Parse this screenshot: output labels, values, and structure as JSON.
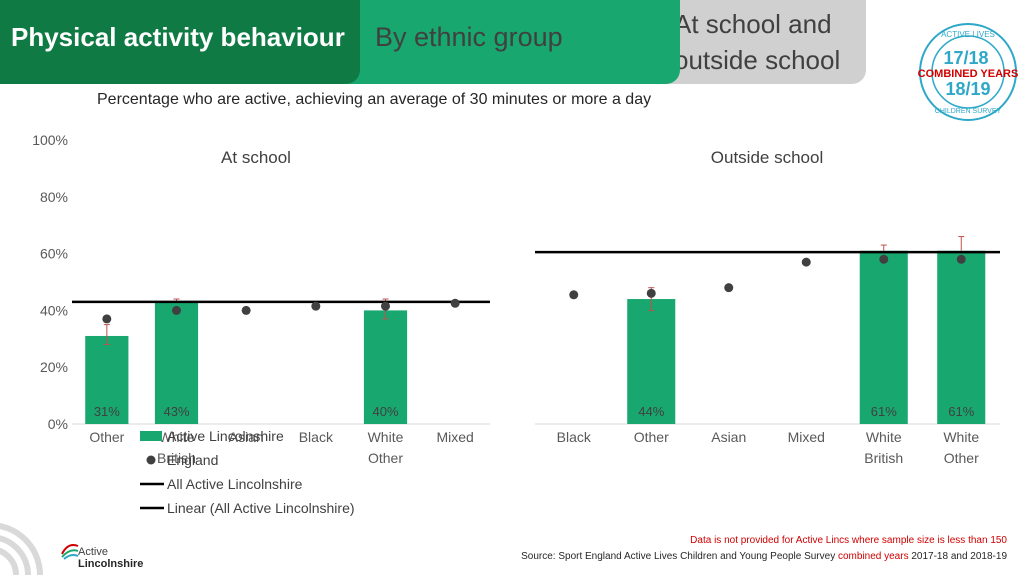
{
  "header": {
    "title": "Physical activity behaviour",
    "section": "By ethnic group",
    "subsection": "At school and outside school"
  },
  "badge": {
    "top_text": "ACTIVE LIVES",
    "year1": "17/18",
    "middle": "COMBINED YEARS",
    "year2": "18/19",
    "bottom_text": "CHILDREN SURVEY"
  },
  "subtitle": "Percentage who are active, achieving an average of 30 minutes or more a day",
  "footer": {
    "note": "Data is not provided for Active Lincs where sample size is less than 150",
    "source_prefix": "Source: Sport England Active Lives Children and Young People Survey",
    "source_highlight": "combined years",
    "source_suffix": "2017-18 and 2018-19"
  },
  "logo": {
    "line1": "Active",
    "line2": "Lincolnshire"
  },
  "colors": {
    "bar": "#18a86f",
    "dot": "#404040",
    "line": "#000000",
    "error": "#c0504d",
    "header_dark": "#0f7a44",
    "badge_blue": "#2ea8c8",
    "badge_red": "#d00000"
  },
  "chart_data": [
    {
      "type": "bar",
      "title": "At school",
      "ylim": [
        0,
        100
      ],
      "yticks": [
        "0%",
        "20%",
        "40%",
        "60%",
        "80%",
        "100%"
      ],
      "categories": [
        "Other",
        "White British",
        "Asian",
        "Black",
        "White Other",
        "Mixed"
      ],
      "series": [
        {
          "name": "Active Lincolnshire",
          "type": "bar",
          "values": [
            31,
            43,
            null,
            null,
            40,
            null
          ],
          "labels": [
            "31%",
            "43%",
            "",
            "",
            "40%",
            ""
          ],
          "error_low": [
            28,
            null,
            null,
            null,
            37,
            null
          ],
          "error_high": [
            35,
            44,
            null,
            null,
            44,
            null
          ]
        },
        {
          "name": "England",
          "type": "scatter",
          "values": [
            37,
            40,
            40,
            41.5,
            41.5,
            42.5
          ]
        },
        {
          "name": "All Active Lincolnshire",
          "type": "line",
          "value": 43
        }
      ],
      "legend": [
        "Active Lincolnshire",
        "England",
        "All Active Lincolnshire",
        "Linear (All Active Lincolnshire)"
      ],
      "legend_position": "bottom"
    },
    {
      "type": "bar",
      "title": "Outside school",
      "ylim": [
        0,
        100
      ],
      "categories": [
        "Black",
        "Other",
        "Asian",
        "Mixed",
        "White British",
        "White Other"
      ],
      "series": [
        {
          "name": "Active Lincolnshire",
          "type": "bar",
          "values": [
            null,
            44,
            null,
            null,
            61,
            61
          ],
          "labels": [
            "",
            "44%",
            "",
            "",
            "61%",
            "61%"
          ],
          "error_low": [
            null,
            40,
            null,
            null,
            null,
            null
          ],
          "error_high": [
            null,
            48,
            null,
            null,
            63,
            66
          ]
        },
        {
          "name": "England",
          "type": "scatter",
          "values": [
            45.5,
            46,
            48,
            57,
            58,
            58
          ]
        },
        {
          "name": "All Active Lincolnshire",
          "type": "line",
          "value": 60.5
        }
      ]
    }
  ]
}
